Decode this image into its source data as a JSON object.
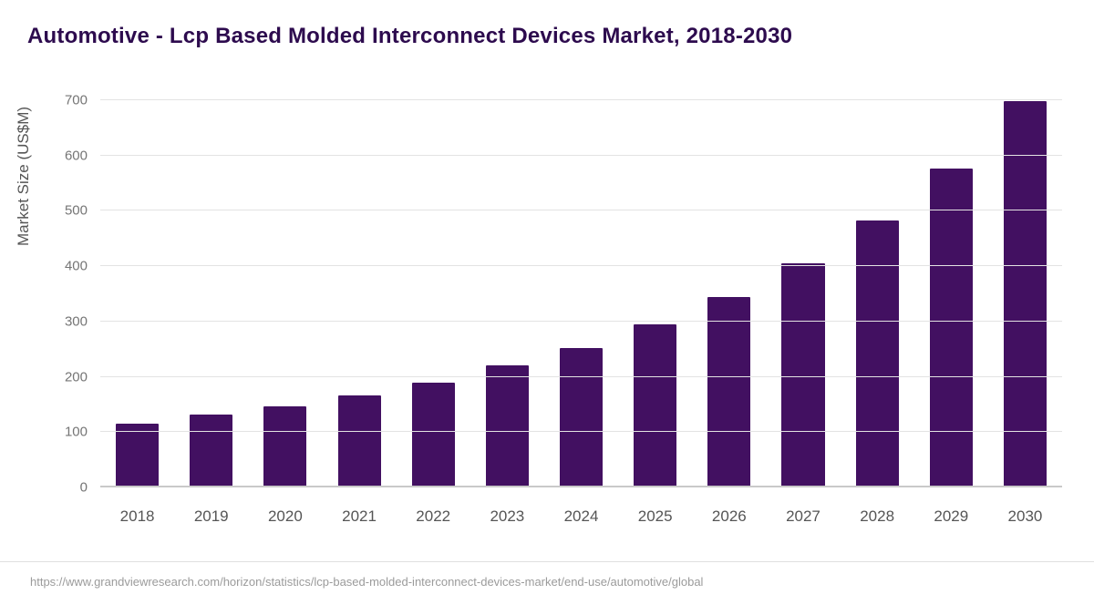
{
  "title": "Automotive - Lcp Based Molded Interconnect Devices Market, 2018-2030",
  "source_url": "https://www.grandviewresearch.com/horizon/statistics/lcp-based-molded-interconnect-devices-market/end-use/automotive/global",
  "chart_data": {
    "type": "bar",
    "title": "Automotive - Lcp Based Molded Interconnect Devices Market, 2018-2030",
    "categories": [
      "2018",
      "2019",
      "2020",
      "2021",
      "2022",
      "2023",
      "2024",
      "2025",
      "2026",
      "2027",
      "2028",
      "2029",
      "2030"
    ],
    "values": [
      115,
      131,
      147,
      167,
      190,
      220,
      252,
      295,
      345,
      405,
      482,
      577,
      698
    ],
    "xlabel": "",
    "ylabel": "Market Size (US$M)",
    "ylim": [
      0,
      700
    ],
    "yticks": [
      0,
      100,
      200,
      300,
      400,
      500,
      600,
      700
    ],
    "grid": true,
    "legend_position": "none",
    "bar_color": "#421061",
    "title_color": "#2d0b4e"
  }
}
